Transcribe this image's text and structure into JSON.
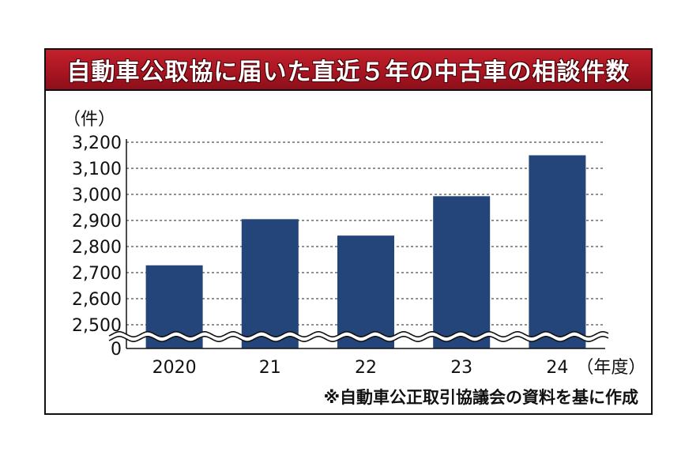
{
  "chart_data": {
    "type": "bar",
    "title": "自動車公取協に届いた直近５年の中古車の相談件数",
    "categories": [
      "2020",
      "21",
      "22",
      "23",
      "24"
    ],
    "x_unit": "（年度）",
    "values": [
      2728,
      2905,
      2842,
      2993,
      3150
    ],
    "ylabel": "（件）",
    "ylim": [
      2450,
      3200
    ],
    "y_ticks": [
      0,
      2500,
      2600,
      2700,
      2800,
      2900,
      3000,
      3100,
      3200
    ],
    "y_tick_labels": [
      "0",
      "2,500",
      "2,600",
      "2,700",
      "2,800",
      "2,900",
      "3,000",
      "3,100",
      "3,200"
    ],
    "axis_break": true,
    "grid": true,
    "bar_color": "#23457a",
    "source": "※自動車公正取引協議会の資料を基に作成"
  }
}
